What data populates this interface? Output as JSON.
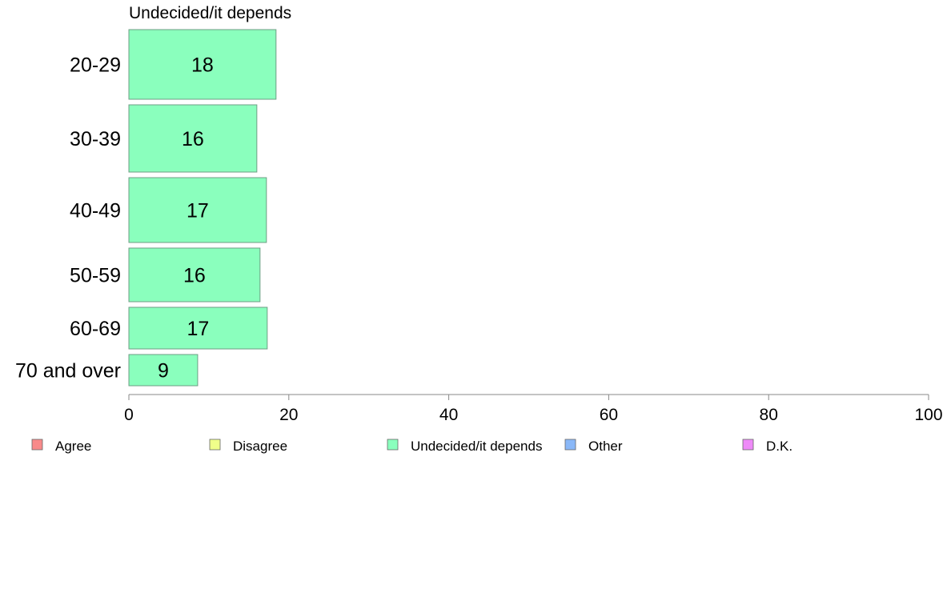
{
  "chart_data": {
    "type": "bar",
    "orientation": "horizontal",
    "title": "Undecided/it depends",
    "categories": [
      "20-29",
      "30-39",
      "40-49",
      "50-59",
      "60-69",
      "70 and over"
    ],
    "series": [
      {
        "name": "Undecided/it depends",
        "values": [
          18,
          16,
          17,
          16,
          17,
          9
        ]
      }
    ],
    "bar_widths": [
      18.4,
      16.0,
      17.2,
      16.4,
      17.3,
      8.6
    ],
    "xlim": [
      0,
      100
    ],
    "xticks": [
      0,
      20,
      40,
      60,
      80,
      100
    ],
    "grid": false,
    "legend_position": "bottom",
    "colors": {
      "bar_fill": "#8affbd",
      "bar_stroke": "#6e9e84",
      "axis": "#888888"
    },
    "legend": [
      {
        "label": "Agree",
        "color": "#f88a8a"
      },
      {
        "label": "Disagree",
        "color": "#f0ff8a"
      },
      {
        "label": "Undecided/it depends",
        "color": "#8affbd"
      },
      {
        "label": "Other",
        "color": "#8ab8f8"
      },
      {
        "label": "D.K.",
        "color": "#ee8af8"
      }
    ]
  }
}
